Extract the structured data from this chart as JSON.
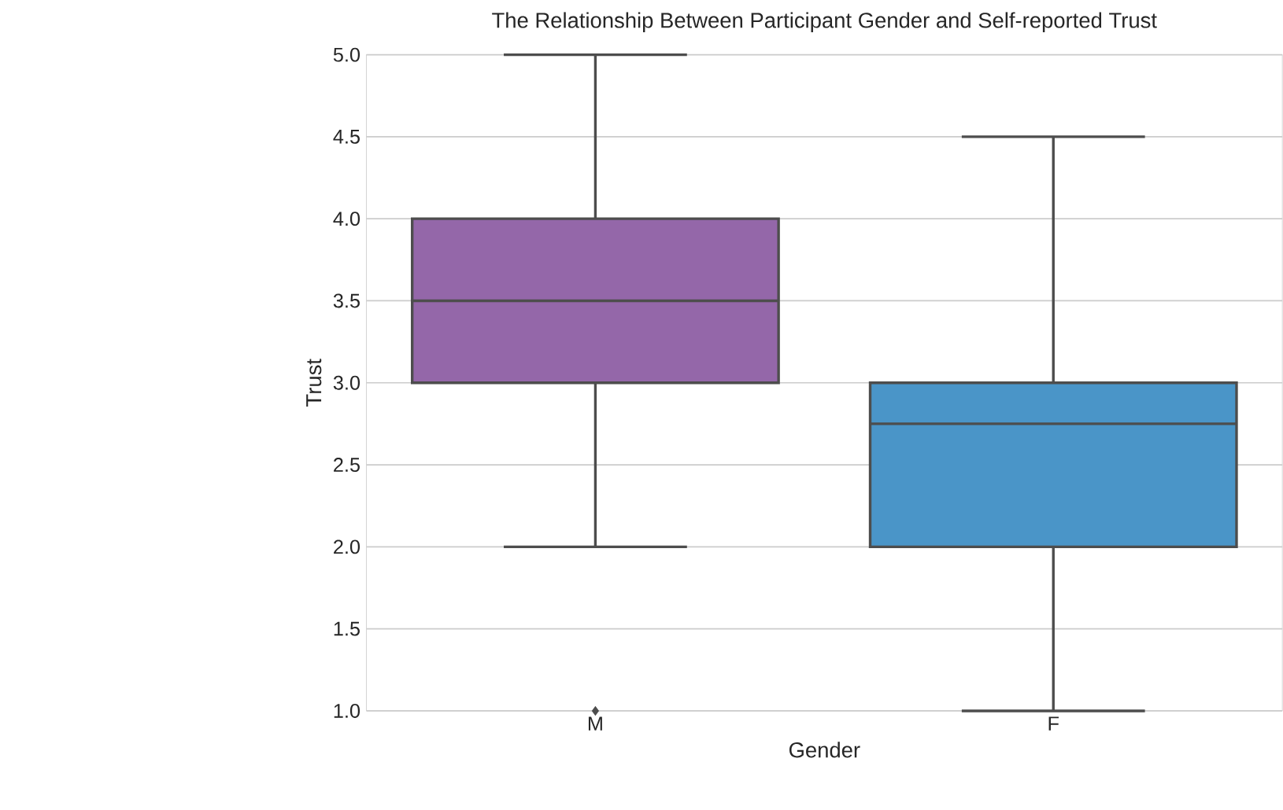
{
  "chart_data": {
    "type": "box",
    "title": "The Relationship Between Participant Gender and Self-reported Trust",
    "xlabel": "Gender",
    "ylabel": "Trust",
    "categories": [
      "M",
      "F"
    ],
    "boxes": [
      {
        "low": 2.0,
        "q1": 3.0,
        "median": 3.5,
        "q3": 4.0,
        "high": 5.0,
        "outliers": [
          1.0
        ]
      },
      {
        "low": 1.0,
        "q1": 2.0,
        "median": 2.75,
        "q3": 3.0,
        "high": 4.5
      }
    ],
    "colors": [
      "#9467a9",
      "#4a95c8"
    ],
    "ylim": [
      1.0,
      5.0
    ],
    "yticks": [
      {
        "value": 1.0,
        "label": "1.0"
      },
      {
        "value": 1.5,
        "label": "1.5"
      },
      {
        "value": 2.0,
        "label": "2.0"
      },
      {
        "value": 2.5,
        "label": "2.5"
      },
      {
        "value": 3.0,
        "label": "3.0"
      },
      {
        "value": 3.5,
        "label": "3.5"
      },
      {
        "value": 4.0,
        "label": "4.0"
      },
      {
        "value": 4.5,
        "label": "4.5"
      },
      {
        "value": 5.0,
        "label": "5.0"
      }
    ],
    "grid": "y"
  }
}
